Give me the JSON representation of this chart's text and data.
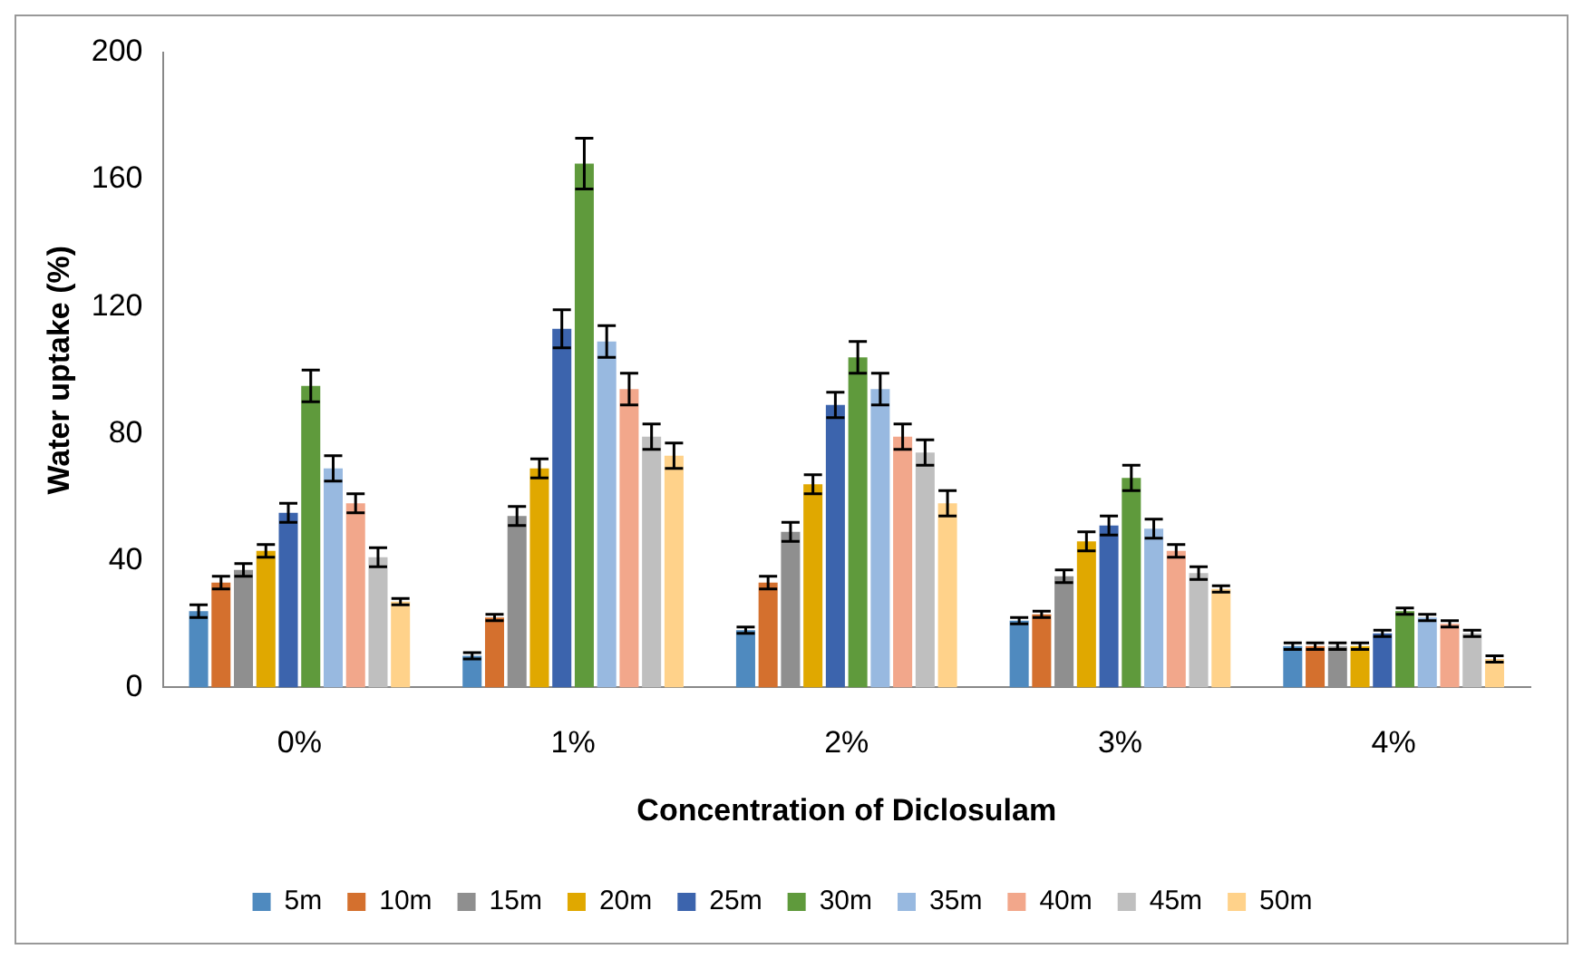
{
  "chart_data": {
    "type": "bar",
    "xlabel": "Concentration of Diclosulam",
    "ylabel": "Water uptake (%)",
    "categories": [
      "0%",
      "1%",
      "2%",
      "3%",
      "4%"
    ],
    "ylim": [
      0,
      200
    ],
    "yticks": [
      0,
      40,
      80,
      120,
      160,
      200
    ],
    "grid": false,
    "legend": "bottom",
    "series": [
      {
        "name": "5m",
        "color": "#4f8abf",
        "values": [
          24,
          10,
          18,
          21,
          13
        ],
        "errors": [
          2,
          1,
          1,
          1,
          1
        ]
      },
      {
        "name": "10m",
        "color": "#d4702e",
        "values": [
          33,
          22,
          33,
          23,
          13
        ],
        "errors": [
          2,
          1,
          2,
          1,
          1
        ]
      },
      {
        "name": "15m",
        "color": "#8f8f8f",
        "values": [
          37,
          54,
          49,
          35,
          13
        ],
        "errors": [
          2,
          3,
          3,
          2,
          1
        ]
      },
      {
        "name": "20m",
        "color": "#e0a800",
        "values": [
          43,
          69,
          64,
          46,
          13
        ],
        "errors": [
          2,
          3,
          3,
          3,
          1
        ]
      },
      {
        "name": "25m",
        "color": "#3c64ad",
        "values": [
          55,
          113,
          89,
          51,
          17
        ],
        "errors": [
          3,
          6,
          4,
          3,
          1
        ]
      },
      {
        "name": "30m",
        "color": "#5f9a3c",
        "values": [
          95,
          165,
          104,
          66,
          24
        ],
        "errors": [
          5,
          8,
          5,
          4,
          1
        ]
      },
      {
        "name": "35m",
        "color": "#98b9e0",
        "values": [
          69,
          109,
          94,
          50,
          22
        ],
        "errors": [
          4,
          5,
          5,
          3,
          1
        ]
      },
      {
        "name": "40m",
        "color": "#f2a78b",
        "values": [
          58,
          94,
          79,
          43,
          20
        ],
        "errors": [
          3,
          5,
          4,
          2,
          1
        ]
      },
      {
        "name": "45m",
        "color": "#bfbfbf",
        "values": [
          41,
          79,
          74,
          36,
          17
        ],
        "errors": [
          3,
          4,
          4,
          2,
          1
        ]
      },
      {
        "name": "50m",
        "color": "#ffd28a",
        "values": [
          27,
          73,
          58,
          31,
          9
        ],
        "errors": [
          1,
          4,
          4,
          1,
          1
        ]
      }
    ]
  }
}
